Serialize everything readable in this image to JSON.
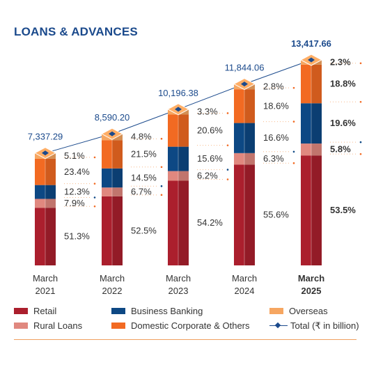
{
  "title": "LOANS & ADVANCES",
  "colors": {
    "retail": "#ab1f2d",
    "rural": "#e0887f",
    "business": "#0d4884",
    "domestic": "#f26a22",
    "overseas": "#f6a661",
    "total": "#1b4a8c"
  },
  "chart_data": {
    "type": "bar",
    "stacked": true,
    "title": "LOANS & ADVANCES",
    "categories": [
      "March 2021",
      "March 2022",
      "March 2023",
      "March 2024",
      "March 2025"
    ],
    "category_lines": [
      [
        "March",
        "2021"
      ],
      [
        "March",
        "2022"
      ],
      [
        "March",
        "2023"
      ],
      [
        "March",
        "2024"
      ],
      [
        "March",
        "2025"
      ]
    ],
    "series": [
      {
        "name": "Retail",
        "key": "retail",
        "values": [
          51.3,
          52.5,
          54.2,
          55.6,
          53.5
        ],
        "labels": [
          "51.3%",
          "52.5%",
          "54.2%",
          "55.6%",
          "53.5%"
        ]
      },
      {
        "name": "Rural Loans",
        "key": "rural",
        "values": [
          7.9,
          6.7,
          6.2,
          6.3,
          5.8
        ],
        "labels": [
          "7.9%",
          "6.7%",
          "6.2%",
          "6.3%",
          "5.8%"
        ]
      },
      {
        "name": "Business Banking",
        "key": "business",
        "values": [
          12.3,
          14.5,
          15.6,
          16.6,
          19.6
        ],
        "labels": [
          "12.3%",
          "14.5%",
          "15.6%",
          "16.6%",
          "19.6%"
        ]
      },
      {
        "name": "Domestic Corporate & Others",
        "key": "domestic",
        "values": [
          23.4,
          21.5,
          20.6,
          18.6,
          18.8
        ],
        "labels": [
          "23.4%",
          "21.5%",
          "20.6%",
          "18.6%",
          "18.8%"
        ]
      },
      {
        "name": "Overseas",
        "key": "overseas",
        "values": [
          5.1,
          4.8,
          3.3,
          2.8,
          2.3
        ],
        "labels": [
          "5.1%",
          "4.8%",
          "3.3%",
          "2.8%",
          "2.3%"
        ]
      }
    ],
    "total": {
      "name": "Total (₹ in billion)",
      "values": [
        7337.29,
        8590.2,
        10196.38,
        11844.06,
        13417.66
      ],
      "labels": [
        "7,337.29",
        "8,590.20",
        "10,196.38",
        "11,844.06",
        "13,417.66"
      ]
    },
    "highlight_category": "March 2025"
  },
  "legend": {
    "row1": [
      "Retail",
      "Business Banking",
      "Overseas"
    ],
    "row2": [
      "Rural Loans",
      "Domestic Corporate & Others",
      "Total (₹ in billion)"
    ]
  }
}
